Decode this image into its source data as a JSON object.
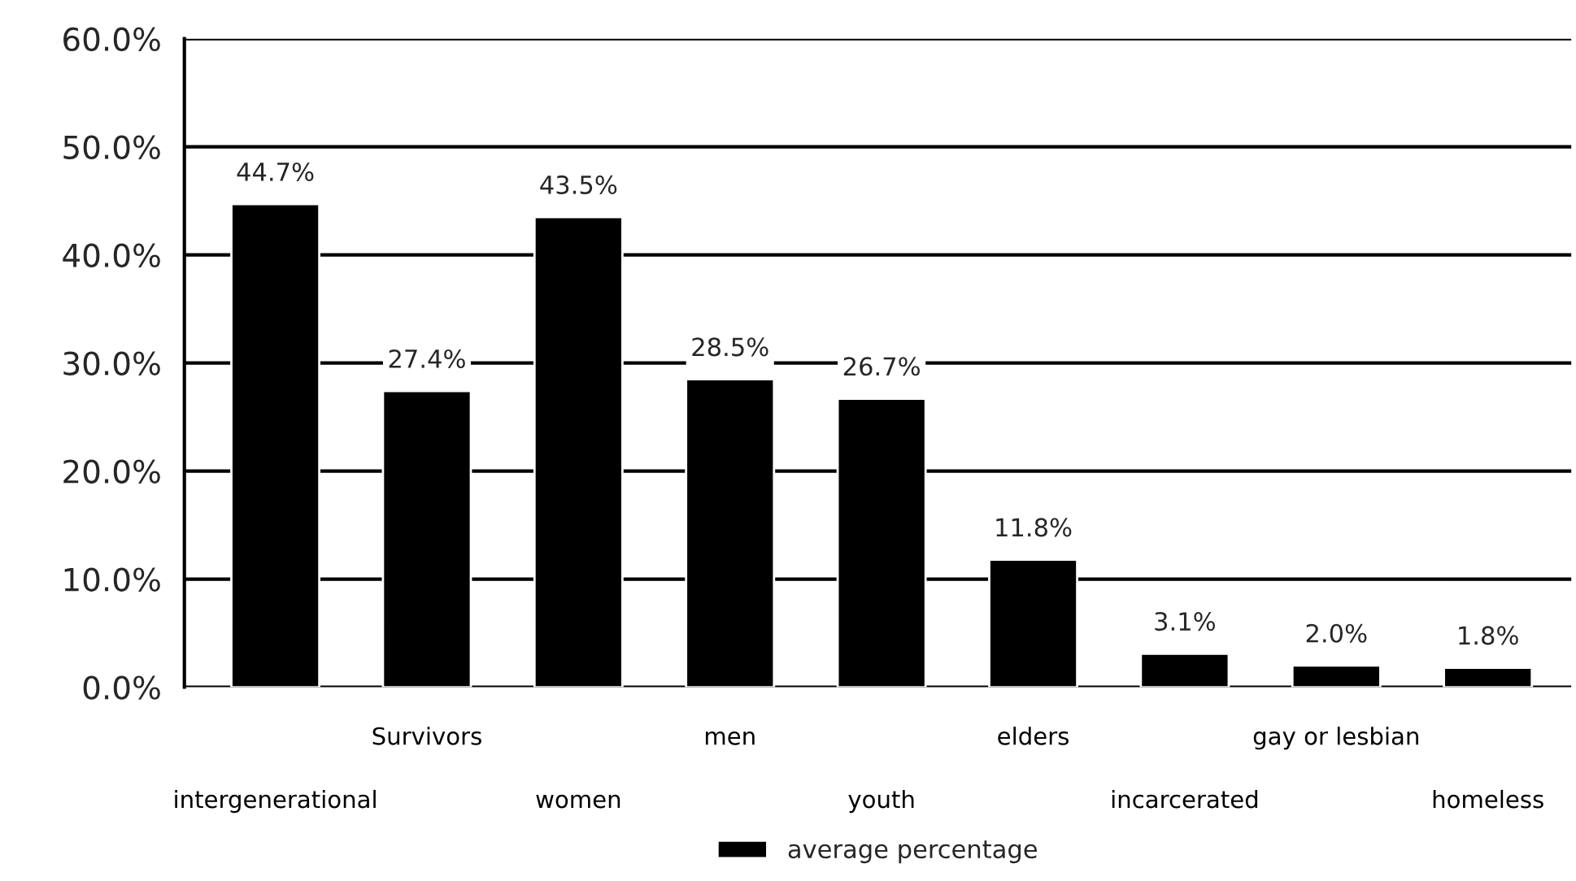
{
  "chart_data": {
    "type": "bar",
    "categories": [
      "intergenerational",
      "Survivors",
      "women",
      "men",
      "youth",
      "elders",
      "incarcerated",
      "gay or lesbian",
      "homeless"
    ],
    "series": [
      {
        "name": "average percentage",
        "color": "#000000",
        "values": [
          44.7,
          27.4,
          43.5,
          28.5,
          26.7,
          11.8,
          3.1,
          2.0,
          1.8
        ]
      }
    ],
    "value_labels": [
      "44.7%",
      "27.4%",
      "43.5%",
      "28.5%",
      "26.7%",
      "11.8%",
      "3.1%",
      "2.0%",
      "1.8%"
    ],
    "ylim": [
      0,
      60
    ],
    "yticks": [
      {
        "value": 0,
        "label": "0.0%"
      },
      {
        "value": 10,
        "label": "10.0%"
      },
      {
        "value": 20,
        "label": "20.0%"
      },
      {
        "value": 30,
        "label": "30.0%"
      },
      {
        "value": 40,
        "label": "40.0%"
      },
      {
        "value": 50,
        "label": "50.0%"
      },
      {
        "value": 60,
        "label": "60.0%"
      }
    ],
    "grid": "y",
    "legend": "bottom"
  }
}
